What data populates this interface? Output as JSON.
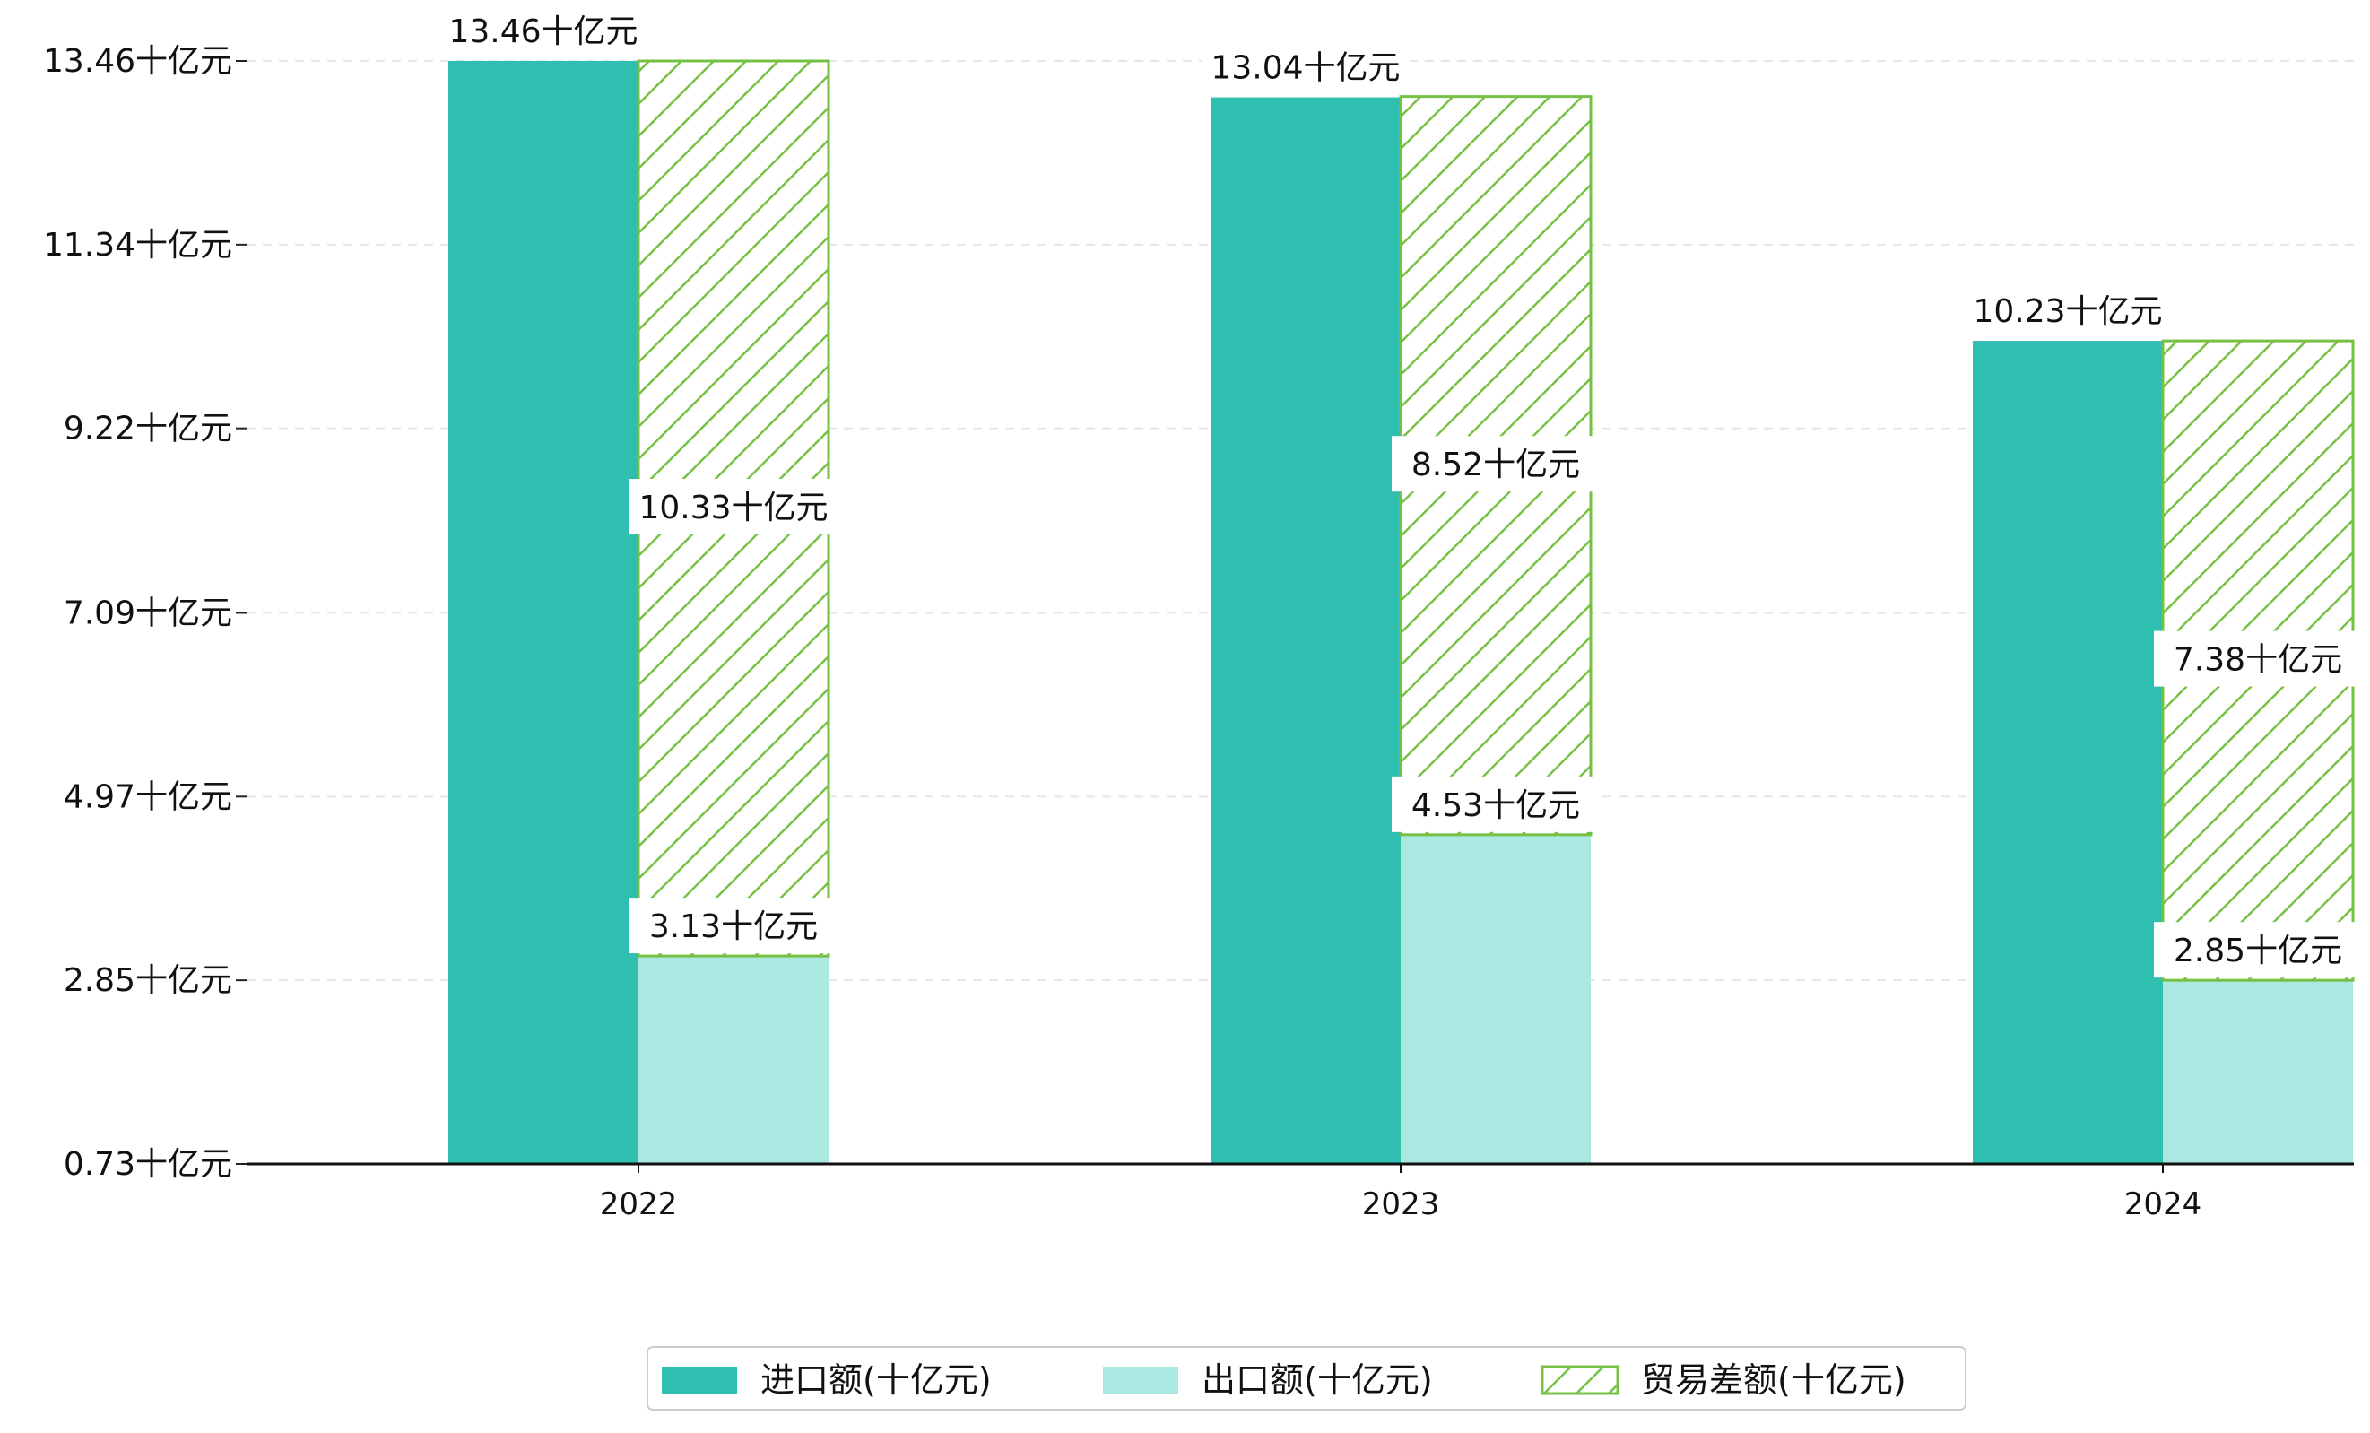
{
  "chart_data": {
    "type": "bar",
    "unit_suffix": "十亿元",
    "categories": [
      "2022",
      "2023",
      "2024"
    ],
    "series": [
      {
        "name": "进口额(十亿元)",
        "values": [
          13.46,
          13.04,
          10.23
        ],
        "color": "#2ebfb1",
        "style": "solid"
      },
      {
        "name": "出口额(十亿元)",
        "values": [
          3.13,
          4.53,
          2.85
        ],
        "color": "#aae8e2",
        "style": "solid"
      },
      {
        "name": "贸易差额(十亿元)",
        "values": [
          10.33,
          8.52,
          7.38
        ],
        "color": "#76c043",
        "style": "hatched",
        "stacked_on": "出口额(十亿元)"
      }
    ],
    "data_labels": {
      "import": [
        "13.46十亿元",
        "13.04十亿元",
        "10.23十亿元"
      ],
      "export": [
        "3.13十亿元",
        "4.53十亿元",
        "2.85十亿元"
      ],
      "balance": [
        "10.33十亿元",
        "8.52十亿元",
        "7.38十亿元"
      ]
    },
    "yticks": [
      0.73,
      2.85,
      4.97,
      7.09,
      9.22,
      11.34,
      13.46
    ],
    "ytick_labels": [
      "0.73十亿元",
      "2.85十亿元",
      "4.97十亿元",
      "7.09十亿元",
      "9.22十亿元",
      "11.34十亿元",
      "13.46十亿元"
    ],
    "ylim": [
      0.73,
      13.46
    ],
    "grid": "horizontal-dashed",
    "legend_position": "bottom-center"
  }
}
